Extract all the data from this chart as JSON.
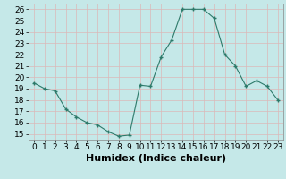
{
  "x": [
    0,
    1,
    2,
    3,
    4,
    5,
    6,
    7,
    8,
    9,
    10,
    11,
    12,
    13,
    14,
    15,
    16,
    17,
    18,
    19,
    20,
    21,
    22,
    23
  ],
  "y": [
    19.5,
    19.0,
    18.8,
    17.2,
    16.5,
    16.0,
    15.8,
    15.2,
    14.8,
    14.9,
    19.3,
    19.2,
    21.8,
    23.3,
    26.0,
    26.0,
    26.0,
    25.2,
    22.0,
    21.0,
    19.2,
    19.7,
    19.2,
    18.0
  ],
  "xlabel": "Humidex (Indice chaleur)",
  "ylim": [
    14.5,
    26.5
  ],
  "xlim": [
    -0.5,
    23.5
  ],
  "yticks": [
    15,
    16,
    17,
    18,
    19,
    20,
    21,
    22,
    23,
    24,
    25,
    26
  ],
  "xticks": [
    0,
    1,
    2,
    3,
    4,
    5,
    6,
    7,
    8,
    9,
    10,
    11,
    12,
    13,
    14,
    15,
    16,
    17,
    18,
    19,
    20,
    21,
    22,
    23
  ],
  "line_color": "#2d7a6a",
  "marker_color": "#2d7a6a",
  "bg_color": "#c5e8e8",
  "grid_color": "#dbb8b8",
  "xlabel_fontsize": 8,
  "tick_fontsize": 6.5
}
